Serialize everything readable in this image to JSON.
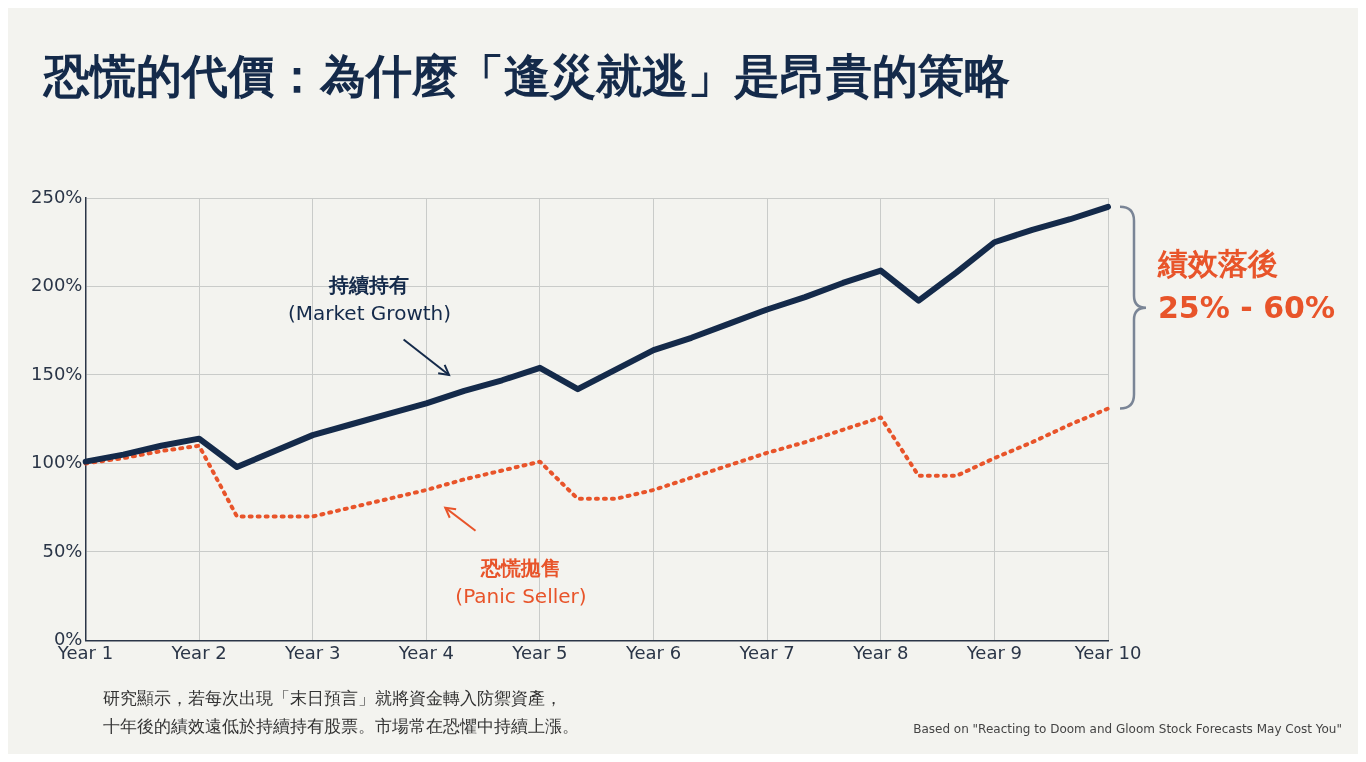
{
  "chart_data": {
    "type": "line",
    "title": "恐慌的代價：為什麼「逢災就逃」是昂貴的策略",
    "categories": [
      "Year 1",
      null,
      null,
      "Year 2",
      null,
      null,
      "Year 3",
      null,
      null,
      "Year 4",
      null,
      null,
      "Year 5",
      null,
      null,
      "Year 6",
      null,
      null,
      "Year 7",
      null,
      null,
      "Year 8",
      null,
      null,
      "Year 9",
      null,
      null,
      "Year 10"
    ],
    "ylim": [
      0,
      250
    ],
    "yticks": [
      {
        "value": 0,
        "label": "0%"
      },
      {
        "value": 50,
        "label": "50%"
      },
      {
        "value": 100,
        "label": "100%"
      },
      {
        "value": 150,
        "label": "150%"
      },
      {
        "value": 200,
        "label": "200%"
      },
      {
        "value": 250,
        "label": "250%"
      }
    ],
    "grid": true,
    "marker": "none",
    "series": [
      {
        "name": "持續持有\n(Market Growth)",
        "color": "#142a4a",
        "line_style": "solid",
        "values": [
          101,
          105,
          110,
          114,
          98,
          107,
          116,
          122,
          128,
          134,
          141,
          147,
          154,
          142,
          153,
          164,
          171,
          179,
          187,
          194,
          202,
          209,
          192,
          208,
          225,
          232,
          238,
          245
        ]
      },
      {
        "name": "恐慌拋售\n(Panic Seller)",
        "color": "#e8542a",
        "line_style": "dotted",
        "values": [
          100,
          103,
          107,
          110,
          70,
          70,
          70,
          75,
          80,
          85,
          91,
          96,
          101,
          80,
          80,
          85,
          92,
          99,
          106,
          112,
          119,
          126,
          93,
          93,
          103,
          112,
          122,
          131
        ]
      }
    ],
    "annotations": [
      "績效落後\n25% - 60%",
      "研究顯示，若每次出現「末日預言」就將資金轉入防禦資產，",
      "十年後的績效遠低於持續持有股票。市場常在恐懼中持續上漲。",
      "Based on \"Reacting to Doom and Gloom Stock Forecasts May Cost You\""
    ]
  }
}
